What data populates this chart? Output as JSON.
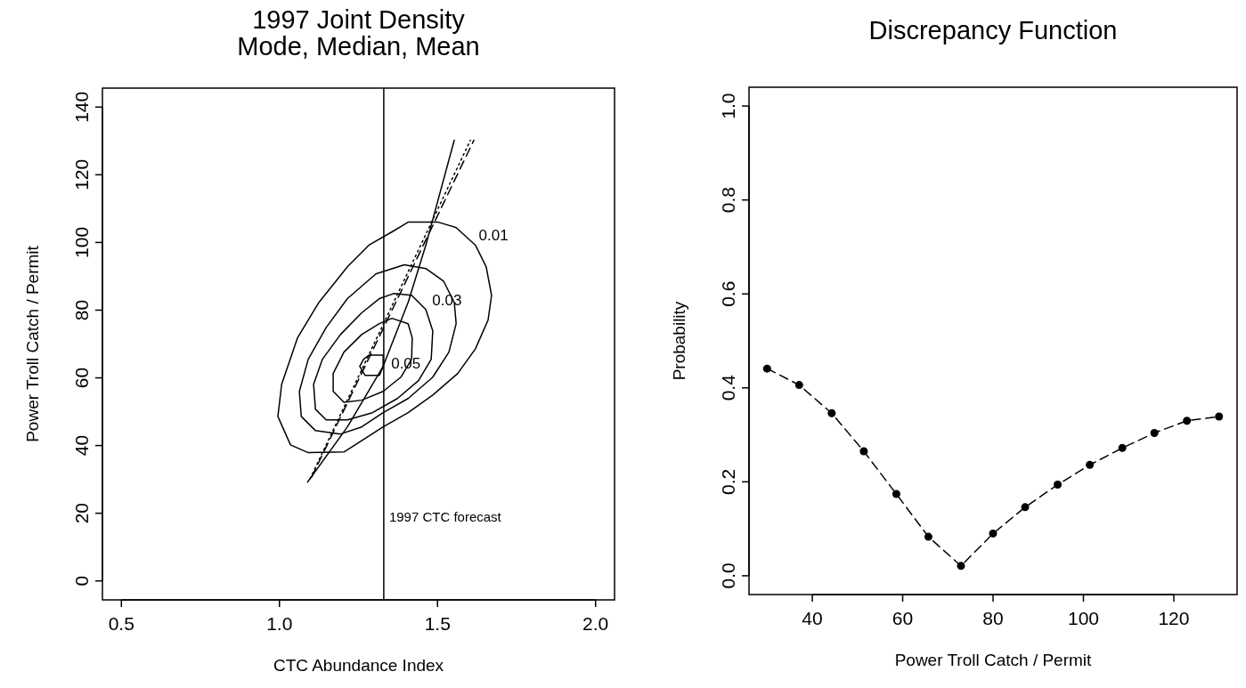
{
  "chart_data": [
    {
      "type": "line",
      "title": "1997 Joint Density\nMode, Median, Mean",
      "xlabel": "CTC Abundance Index",
      "ylabel": "Power Troll Catch / Permit",
      "xlim": [
        0.44,
        2.06
      ],
      "ylim": [
        -5.6,
        145.6
      ],
      "xticks": [
        0.5,
        {
          "value": 1,
          "label": "1.0"
        },
        1.5,
        {
          "value": 2,
          "label": "2.0"
        }
      ],
      "yticks": [
        0,
        20,
        40,
        60,
        80,
        100,
        120,
        140
      ],
      "grid": false,
      "marker": "none",
      "series": [
        {
          "color": "#000000",
          "line_style": "solid",
          "x": [
            1.089,
            1.215,
            1.328,
            1.407,
            1.463,
            1.553
          ],
          "values": [
            29.2,
            45.5,
            63.4,
            82.3,
            99.2,
            130.2
          ]
        },
        {
          "color": "#000000",
          "line_style": "dotted",
          "x": [
            1.097,
            1.604
          ],
          "values": [
            30.2,
            130.2
          ]
        },
        {
          "color": "#000000",
          "line_style": "dashed",
          "x": [
            1.102,
            1.615
          ],
          "values": [
            30.7,
            130.2
          ]
        }
      ],
      "ref_lines": [
        {
          "axis": "x",
          "value": 1.33,
          "label": "1997 CTC forecast",
          "color": "#000000"
        }
      ],
      "annotations": [
        "0.01",
        "0.03",
        "0.05"
      ]
    },
    {
      "type": "line",
      "title": "Discrepancy Function",
      "xlabel": "Power Troll Catch / Permit",
      "ylabel": "Probability",
      "xlim": [
        26,
        134
      ],
      "ylim": [
        -0.04,
        1.04
      ],
      "xticks": [
        40,
        60,
        80,
        100,
        120
      ],
      "yticks": [
        {
          "value": 0,
          "label": "0.0"
        },
        0.2,
        0.4,
        0.6,
        0.8,
        {
          "value": 1,
          "label": "1.0"
        }
      ],
      "grid": false,
      "marker": "circle",
      "line_style": "dashed",
      "series": [
        {
          "color": "#000000",
          "x": [
            30,
            37.1,
            44.3,
            51.4,
            58.6,
            65.7,
            72.9,
            80,
            87.1,
            94.3,
            101.4,
            108.6,
            115.7,
            122.9,
            130
          ],
          "values": [
            0.441,
            0.406,
            0.346,
            0.265,
            0.174,
            0.083,
            0.021,
            0.09,
            0.146,
            0.194,
            0.236,
            0.272,
            0.304,
            0.33,
            0.339
          ]
        }
      ]
    }
  ]
}
